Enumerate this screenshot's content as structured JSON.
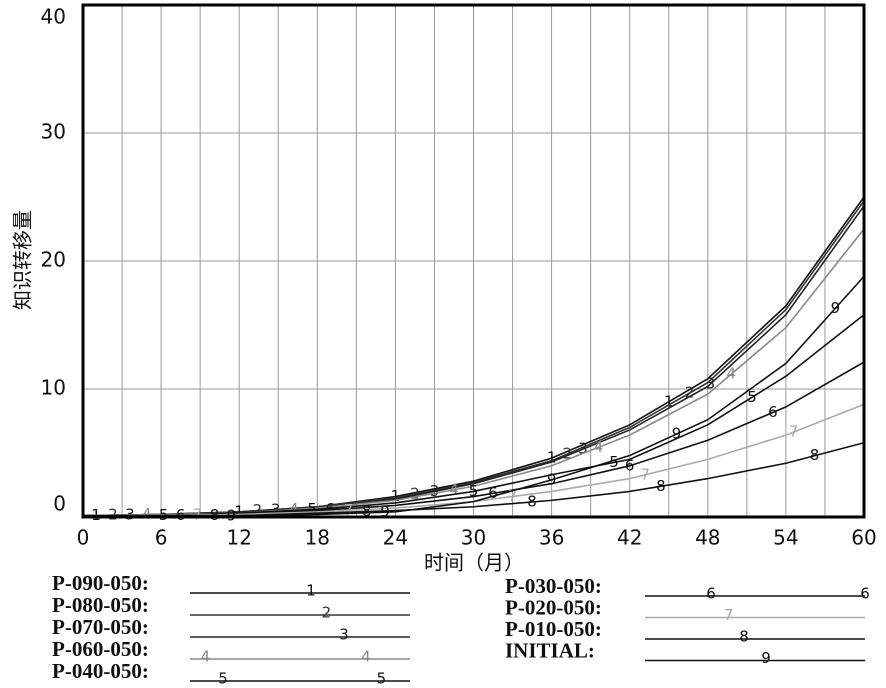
{
  "chart_data": {
    "type": "line",
    "x_label": "时间（月）",
    "y_label": "知识转移量",
    "x": [
      0,
      6,
      12,
      18,
      24,
      30,
      36,
      42,
      48,
      54,
      60
    ],
    "xlim": [
      0,
      60
    ],
    "xticks": [
      0,
      6,
      12,
      18,
      24,
      30,
      36,
      42,
      48,
      54,
      60
    ],
    "ylim": [
      0,
      40
    ],
    "yticks": [
      0,
      10,
      20,
      30,
      40
    ],
    "grid": true,
    "series": [
      {
        "name": "P-090-050:",
        "marker": "1",
        "color": "#111111",
        "values": [
          0.1,
          0.2,
          0.4,
          0.8,
          1.6,
          2.8,
          4.6,
          7.2,
          10.8,
          16.5,
          25
        ]
      },
      {
        "name": "P-080-050:",
        "marker": "2",
        "color": "#333333",
        "values": [
          0.1,
          0.2,
          0.4,
          0.8,
          1.5,
          2.7,
          4.4,
          7.0,
          10.5,
          16.2,
          24.7
        ]
      },
      {
        "name": "P-070-050:",
        "marker": "3",
        "color": "#222222",
        "values": [
          0.1,
          0.2,
          0.4,
          0.7,
          1.4,
          2.6,
          4.3,
          6.8,
          10.2,
          15.8,
          24.3
        ]
      },
      {
        "name": "P-060-050:",
        "marker": "4",
        "color": "#888888",
        "values": [
          0.1,
          0.2,
          0.3,
          0.7,
          1.3,
          2.4,
          4.0,
          6.4,
          9.6,
          14.8,
          22.5
        ]
      },
      {
        "name": "P-040-050:",
        "marker": "5",
        "color": "#111111",
        "values": [
          0.1,
          0.1,
          0.3,
          0.6,
          1.1,
          2.0,
          3.3,
          4.5,
          7.2,
          11.0,
          15.8
        ]
      },
      {
        "name": "P-030-050:",
        "marker": "6",
        "color": "#111111",
        "values": [
          0.1,
          0.1,
          0.2,
          0.5,
          0.9,
          1.6,
          2.6,
          4.0,
          6.0,
          8.6,
          12.1
        ]
      },
      {
        "name": "P-020-050:",
        "marker": "7",
        "color": "#aaaaaa",
        "values": [
          0,
          0.1,
          0.2,
          0.4,
          0.7,
          1.2,
          2.0,
          3.0,
          4.5,
          6.4,
          8.8
        ]
      },
      {
        "name": "P-010-050:",
        "marker": "8",
        "color": "#111111",
        "values": [
          0,
          0.1,
          0.1,
          0.3,
          0.5,
          0.8,
          1.3,
          2.0,
          3.0,
          4.2,
          5.8
        ]
      },
      {
        "name": "INITIAL:",
        "marker": "9",
        "color": "#111111",
        "values": [
          0,
          0,
          0.1,
          0.2,
          0.4,
          1.2,
          2.9,
          4.8,
          7.6,
          12.0,
          18.8
        ]
      }
    ]
  }
}
